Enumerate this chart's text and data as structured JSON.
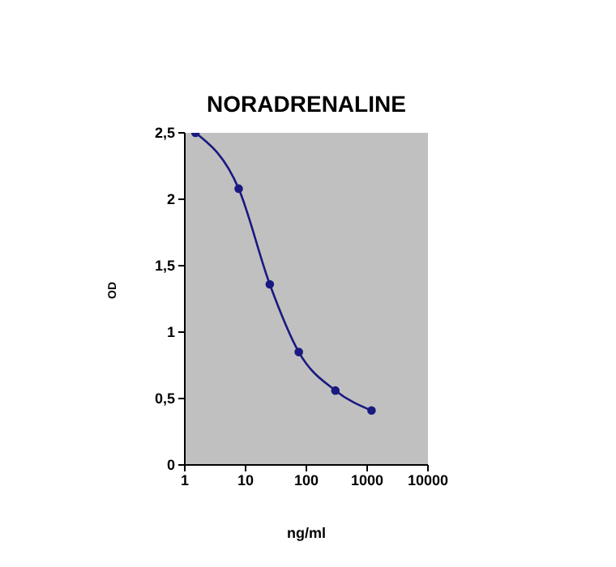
{
  "chart_data": {
    "type": "line",
    "title": "NORADRENALINE",
    "xlabel": "ng/ml",
    "ylabel": "OD",
    "x": [
      1.5,
      7.7,
      25,
      75,
      300,
      1180
    ],
    "series": [
      {
        "color": "#1a1a80",
        "values": [
          2.5,
          2.08,
          1.36,
          0.85,
          0.56,
          0.41
        ]
      }
    ],
    "log": "x",
    "xlim": [
      1,
      10000
    ],
    "xticks": [
      1,
      10,
      100,
      1000,
      10000
    ],
    "ylim": [
      0,
      2.5
    ],
    "yticks": [
      0,
      {
        "value": 0.5,
        "label": "0,5"
      },
      1,
      {
        "value": 1.5,
        "label": "1,5"
      },
      2,
      {
        "value": 2.5,
        "label": "2,5"
      }
    ],
    "marker": "circle",
    "line_style": "solid"
  }
}
